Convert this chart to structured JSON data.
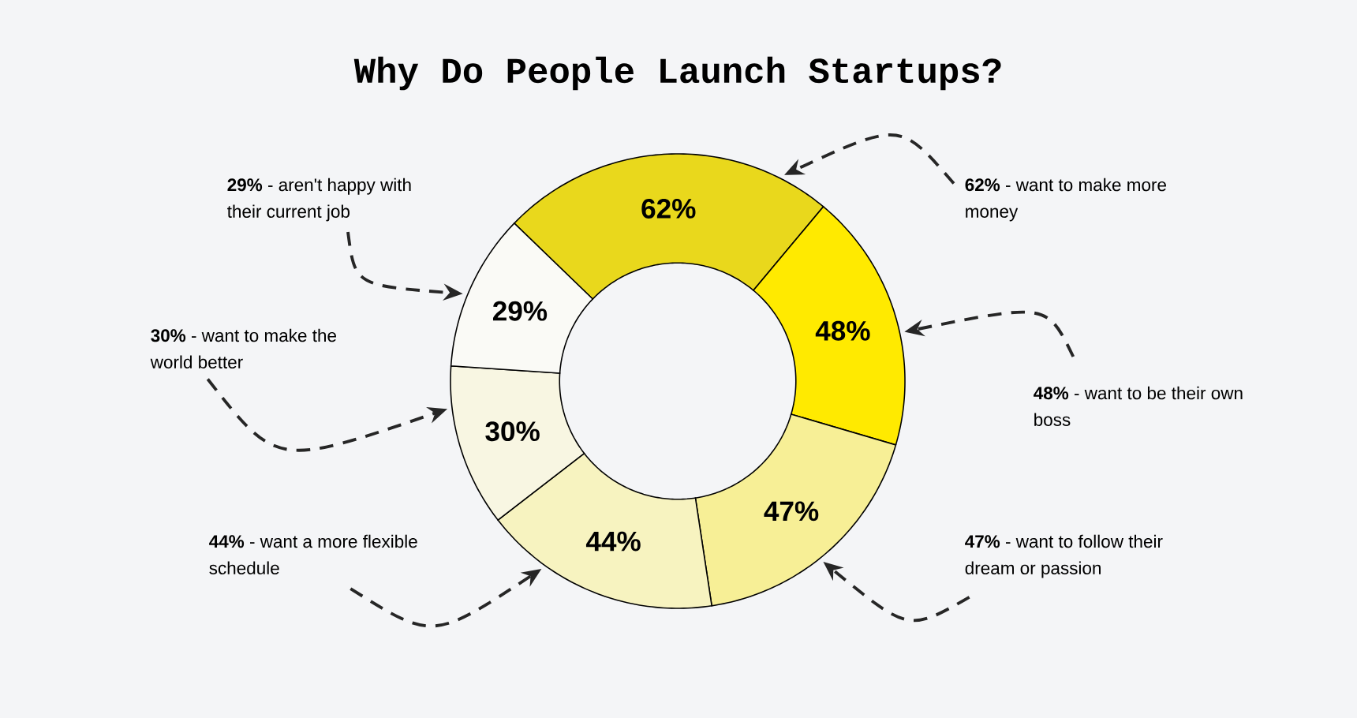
{
  "chart_data": {
    "type": "donut",
    "title": "Why Do People Launch Startups?",
    "categories": [
      "**62%** - want to make more money",
      "**48%** - want to be their own boss",
      "**47%** - want to follow their dream or passion",
      "**44%** - want a more flexible schedule",
      "**30%** - want to make the world better",
      "**29%** - aren't happy with their current job"
    ],
    "values": [
      62,
      48,
      47,
      44,
      30,
      29
    ],
    "colors": [
      "#e9d81c",
      "#ffea00",
      "#f7ef96",
      "#f7f3c0",
      "#f8f6e2",
      "#fafaf6"
    ],
    "value_labels": [
      "62%",
      "48%",
      "47%",
      "44%",
      "30%",
      "29%"
    ]
  }
}
